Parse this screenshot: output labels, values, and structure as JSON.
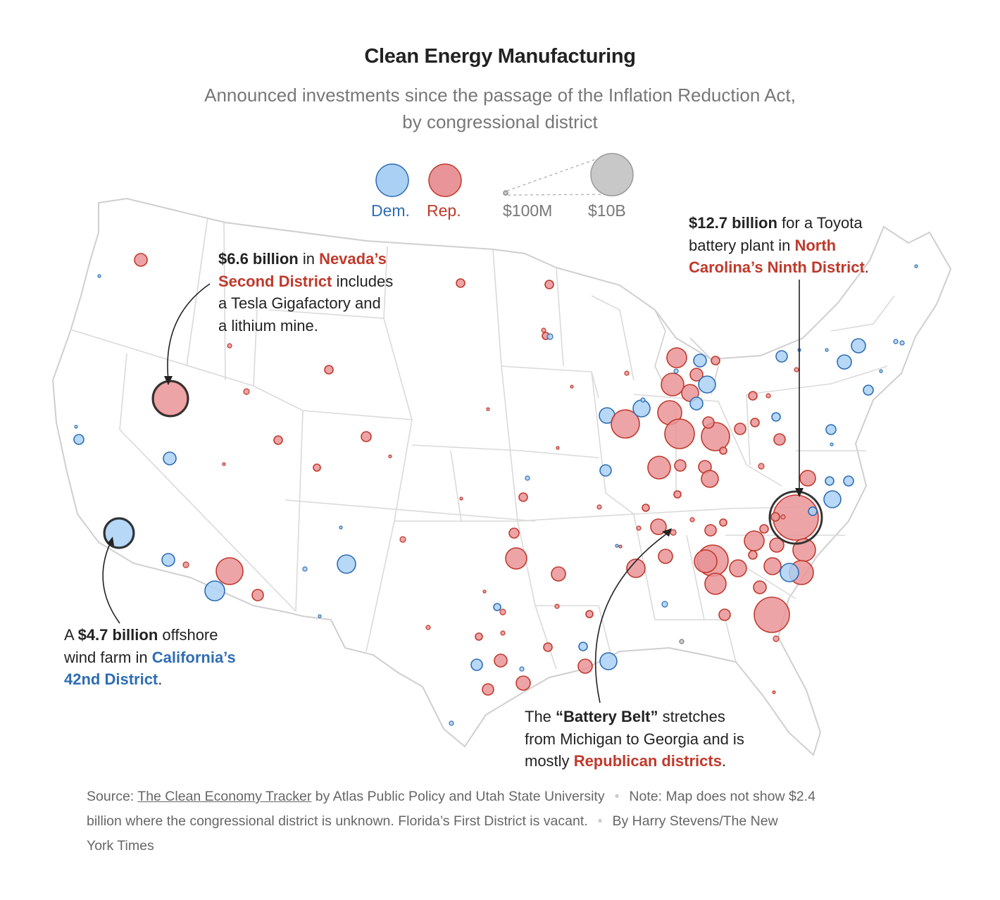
{
  "header": {
    "title": "Clean Energy Manufacturing",
    "subtitle_line1": "Announced investments since the passage of the Inflation Reduction Act,",
    "subtitle_line2": "by congressional district"
  },
  "legend": {
    "dem_label": "Dem.",
    "rep_label": "Rep.",
    "size_min_label": "$100M",
    "size_max_label": "$10B",
    "dem_color": "#aad1f4",
    "rep_color": "#e99498",
    "size_color": "#c8c8c8"
  },
  "annotations": {
    "nevada": {
      "bold": "$6.6 billion",
      "t1": " in ",
      "red": "Nevada's Second District",
      "red_line1": "Nevada’s",
      "red_line2": "Second District",
      "t2": " includes",
      "line3": "a Tesla Gigafactory and",
      "line4": "a lithium mine."
    },
    "north_carolina": {
      "bold": "$12.7 billion",
      "t1": " for a Toyota",
      "line2": "battery plant in ",
      "red1": "North",
      "red2": "Carolina’s Ninth District",
      "t2": "."
    },
    "california": {
      "t0": "A ",
      "bold": "$4.7 billion",
      "t1": " offshore",
      "line2": "wind farm in ",
      "blue1": "California’s",
      "blue2": "42nd District",
      "t2": "."
    },
    "battery_belt": {
      "t0": "The ",
      "bold": "“Battery Belt”",
      "t1": " stretches",
      "line2": "from Michigan to Georgia and is",
      "line3": "mostly ",
      "red": "Republican districts",
      "t2": "."
    }
  },
  "footer": {
    "source_prefix": "Source: ",
    "source_link": "The Clean Economy Tracker",
    "source_rest": " by Atlas Public Policy and Utah State University",
    "note_line1": "Note: Map does not show $2.4",
    "note_line2": "billion where the congressional district is unknown. Florida’s First District is vacant.",
    "byline_line1": "By Harry Stevens/The New",
    "byline_line2": "York Times"
  }
}
